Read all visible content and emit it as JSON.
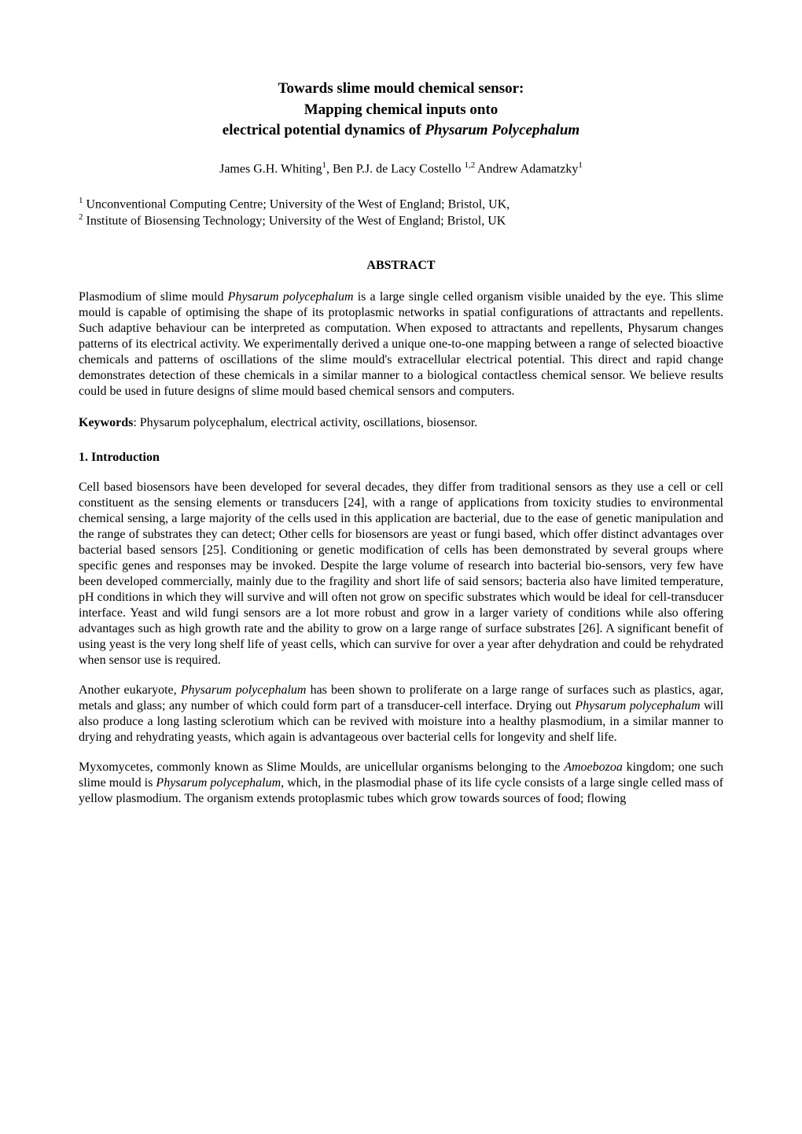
{
  "title": {
    "line1": "Towards slime mould chemical sensor:",
    "line2": "Mapping chemical inputs onto",
    "line3_prefix": "electrical potential dynamics of ",
    "line3_italic": "Physarum Polycephalum"
  },
  "authors": {
    "a1_name": "James G.H. Whiting",
    "a1_sup": "1",
    "sep1": ", ",
    "a2_name": "Ben P.J. de Lacy Costello ",
    "a2_sup": "1,2 ",
    "a3_name": "Andrew  Adamatzky",
    "a3_sup": "1"
  },
  "affiliations": {
    "l1_sup": "1",
    "l1_text": " Unconventional Computing Centre; University of the West of England; Bristol, UK,",
    "l2_sup": "2",
    "l2_text": " Institute of Biosensing Technology; University of the West of England; Bristol, UK"
  },
  "abstract": {
    "heading": "ABSTRACT",
    "p_before_i1": "Plasmodium of slime mould ",
    "i1": "Physarum polycephalum",
    "p_after_i1": " is a large single celled organism visible unaided by the eye. This slime mould is capable of optimising the shape of its protoplasmic networks in spatial configurations of attractants and repellents. Such adaptive behaviour can be interpreted as computation. When exposed to attractants and repellents, Physarum changes patterns of its electrical activity. We experimentally derived a unique one-to-one mapping between a range of selected bioactive chemicals and patterns of oscillations of the slime mould's extracellular electrical potential. This direct and rapid change demonstrates detection of these chemicals in a similar manner to a biological contactless chemical sensor. We believe results could be used in future designs of slime mould based chemical sensors and computers."
  },
  "keywords": {
    "label": "Keywords",
    "text": ":  Physarum polycephalum, electrical activity, oscillations, biosensor."
  },
  "section1": {
    "heading": "1. Introduction",
    "p1": "Cell based biosensors have been developed for several decades, they differ from traditional sensors as they use a cell or cell constituent as the sensing elements or transducers [24], with a range of applications from toxicity studies to environmental chemical sensing, a large majority of the cells used in this application are bacterial, due to the ease of genetic manipulation and the range of substrates they can detect; Other cells for biosensors are yeast or fungi based, which offer distinct advantages over bacterial based sensors [25]. Conditioning or genetic modification of cells has been demonstrated by several groups where specific genes and responses may be invoked. Despite the large volume of research into bacterial bio-sensors, very few have been developed commercially, mainly due to the fragility and short life of said sensors; bacteria also have limited temperature, pH conditions in which they will survive and will often not grow on specific substrates which would be ideal for cell-transducer interface. Yeast and wild fungi sensors are a lot more robust and grow in a larger variety of conditions while also offering advantages such as high growth rate and the ability to grow on a large range of surface substrates [26]. A significant benefit of using yeast is the very long shelf life of yeast cells, which can survive for over a year after dehydration and could be rehydrated when sensor use is required.",
    "p2_before_i1": "Another eukaryote, ",
    "p2_i1": "Physarum polycephalum",
    "p2_mid1": " has been shown to proliferate on a large range of surfaces such as plastics, agar, metals and glass; any number of which could form part of a transducer-cell interface. Drying out ",
    "p2_i2": "Physarum polycephalum",
    "p2_after": " will also produce a long lasting sclerotium which can be revived with moisture into a healthy plasmodium, in a similar manner to drying and rehydrating yeasts, which again is advantageous over bacterial cells for longevity and shelf life.",
    "p3_before_i1": "Myxomycetes, commonly known as Slime Moulds, are unicellular organisms belonging to the ",
    "p3_i1": "Amoebozoa",
    "p3_mid1": " kingdom; one such slime mould is ",
    "p3_i2": "Physarum polycephalum",
    "p3_after": ", which, in the plasmodial phase of its life cycle consists of a large single celled mass of yellow plasmodium. The organism extends protoplasmic tubes which grow towards sources of food; flowing"
  }
}
